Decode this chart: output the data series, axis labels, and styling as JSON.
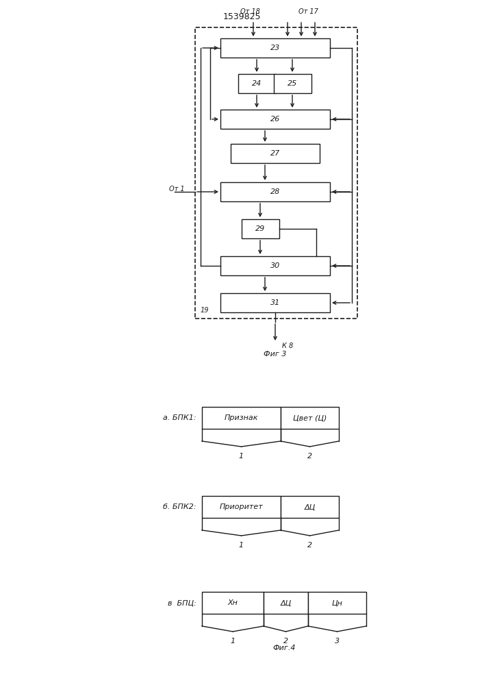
{
  "title": "1539825",
  "fig3_label": "Фиг 3",
  "fig4_label": "Фиг.4",
  "bg_color": "#ffffff",
  "line_color": "#1a1a1a",
  "text_color": "#1a1a1a",
  "label_from18": "От 18",
  "label_from17": "От 17",
  "label_from1": "От 1",
  "label_kb": "К 8",
  "label_19": "19",
  "fig4_a_label": "а. БПК1:",
  "fig4_b_label": "б. БПК2:",
  "fig4_v_label": "в  БПЦ:",
  "fig4_a_cells": [
    "Признак",
    "Цвет (Ц)"
  ],
  "fig4_b_cells": [
    "Приоритет",
    "ΔЦ"
  ],
  "fig4_v_cells": [
    "Хн",
    "ΔЦ",
    "Цн"
  ],
  "fig4_a_nums": [
    "1",
    "2"
  ],
  "fig4_b_nums": [
    "1",
    "2"
  ],
  "fig4_v_nums": [
    "1",
    "2",
    "3"
  ]
}
